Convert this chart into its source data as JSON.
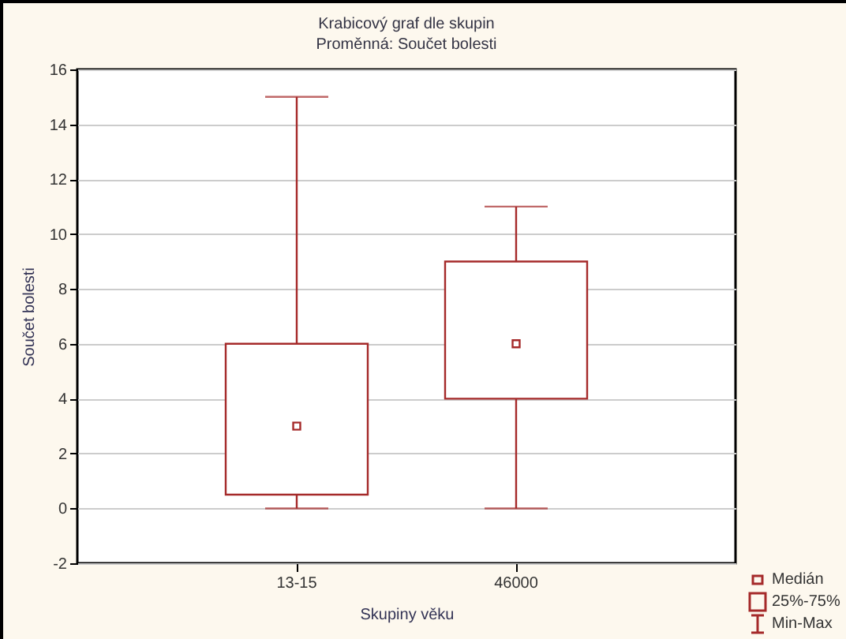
{
  "chart_data": {
    "type": "box",
    "title": "Krabicový graf dle skupin",
    "subtitle": "Proměnná: Součet bolesti",
    "xlabel": "Skupiny věku",
    "ylabel": "Součet bolesti",
    "categories": [
      "13-15",
      "46000"
    ],
    "boxes": [
      {
        "low": 0,
        "q1": 0.5,
        "median": 3,
        "q3": 6,
        "high": 15
      },
      {
        "low": 0,
        "q1": 4,
        "median": 6,
        "q3": 9,
        "high": 11
      }
    ],
    "color": "#a52a2a",
    "ylim": [
      -2,
      16
    ],
    "yticks": [
      -2,
      0,
      2,
      4,
      6,
      8,
      10,
      12,
      14,
      16
    ],
    "grid": "y",
    "annotations": [
      "Medián",
      "25%-75%",
      "Min-Max"
    ]
  }
}
